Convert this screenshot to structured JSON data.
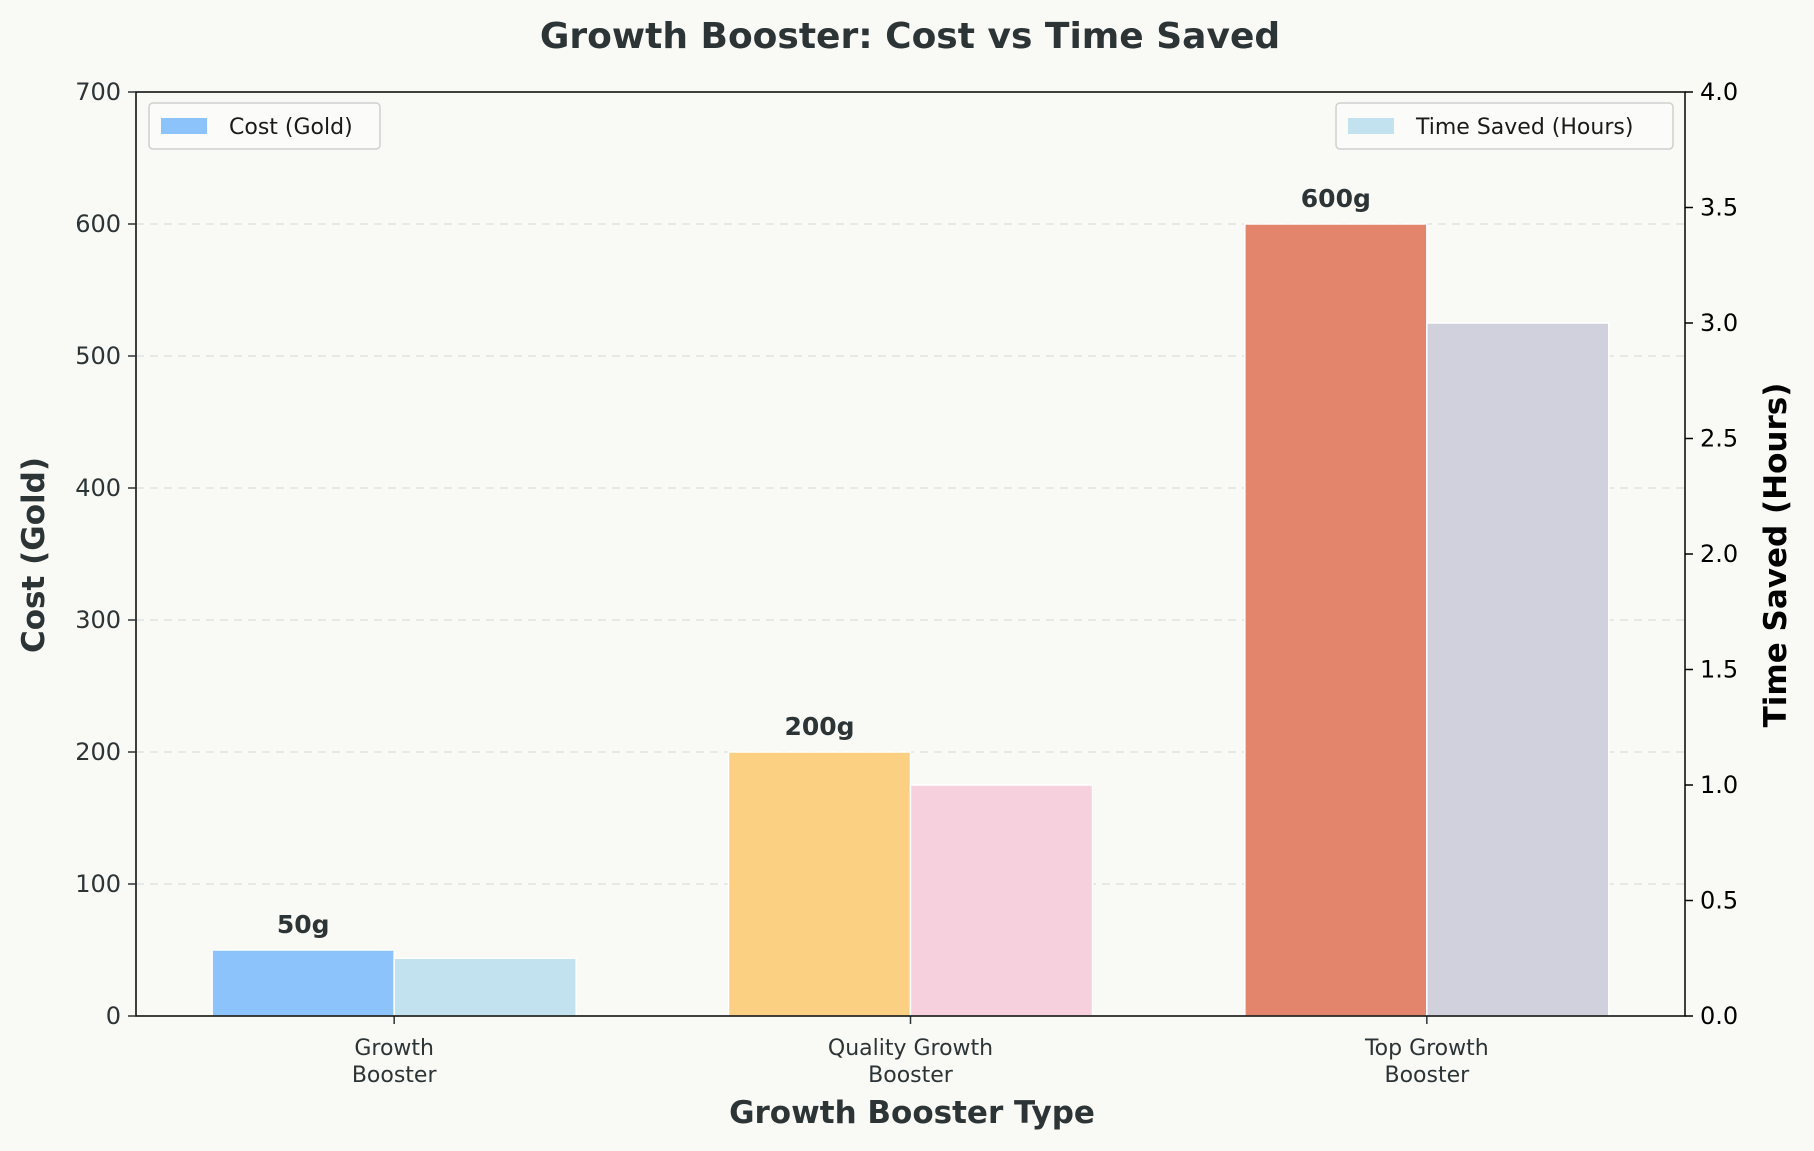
{
  "chart_data": {
    "type": "bar",
    "title": "Growth Booster: Cost vs Time Saved",
    "xlabel": "Growth Booster Type",
    "ylabel": "Cost (Gold)",
    "y2label": "Time Saved (Hours)",
    "categories": [
      "Growth\nBooster",
      "Quality Growth\nBooster",
      "Top Growth\nBooster"
    ],
    "series": [
      {
        "name": "Cost (Gold)",
        "axis": "left",
        "values": [
          50,
          200,
          600
        ],
        "data_labels": [
          "50g",
          "200g",
          "600g"
        ],
        "colors": [
          "#8bc3fa",
          "#fbd083",
          "#e3846d"
        ]
      },
      {
        "name": "Time Saved (Hours)",
        "axis": "right",
        "values": [
          0.25,
          1.0,
          3.0
        ],
        "colors": [
          "#c1e2ee",
          "#f6d0dc",
          "#d0d1dc"
        ]
      }
    ],
    "ylim": [
      0,
      700
    ],
    "y2lim": [
      0,
      4.0
    ],
    "yticks": [
      "0",
      "100",
      "200",
      "300",
      "400",
      "500",
      "600",
      "700"
    ],
    "y2ticks": [
      "0.0",
      "0.5",
      "1.0",
      "1.5",
      "2.0",
      "2.5",
      "3.0",
      "3.5",
      "4.0"
    ],
    "grid": "horizontal dashed",
    "legend_left": "upper-left",
    "legend_right": "upper-right"
  }
}
